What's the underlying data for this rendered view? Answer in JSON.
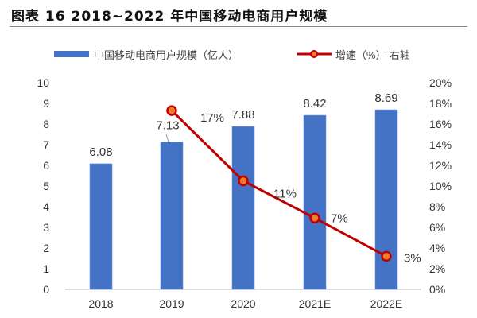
{
  "chart_data": {
    "type": "bar+line",
    "title": "图表 16 2018~2022 年中国移动电商用户规模",
    "categories": [
      "2018",
      "2019",
      "2020",
      "2021E",
      "2022E"
    ],
    "series": [
      {
        "name": "中国移动电商用户规模（亿人）",
        "type": "bar",
        "axis": "left",
        "color": "#4472C4",
        "values": [
          6.08,
          7.13,
          7.88,
          8.42,
          8.69
        ],
        "labels": [
          "6.08",
          "7.13",
          "7.88",
          "8.42",
          "8.69"
        ]
      },
      {
        "name": "增速（%）-右轴",
        "type": "line",
        "axis": "right",
        "color": "#C00000",
        "marker_fill": "#ED7D31",
        "values": [
          null,
          17.3,
          10.5,
          6.9,
          3.2
        ],
        "labels": [
          "",
          "17%",
          "11%",
          "7%",
          "3%"
        ]
      }
    ],
    "left_axis": {
      "min": 0,
      "max": 10,
      "ticks": [
        "0",
        "1",
        "2",
        "3",
        "4",
        "5",
        "6",
        "7",
        "8",
        "9",
        "10"
      ]
    },
    "right_axis": {
      "min": 0,
      "max": 20,
      "ticks": [
        "0%",
        "2%",
        "4%",
        "6%",
        "8%",
        "10%",
        "12%",
        "14%",
        "16%",
        "18%",
        "20%"
      ]
    },
    "grid": false,
    "legend": "top"
  }
}
